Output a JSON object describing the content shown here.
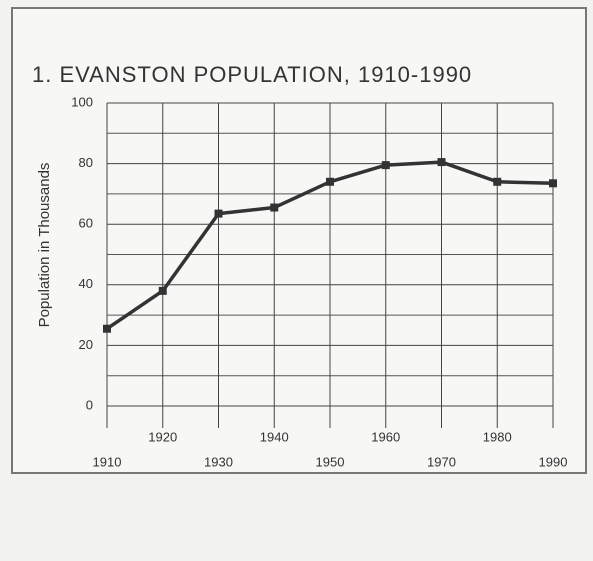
{
  "chart_data": {
    "type": "line",
    "title": "1.  EVANSTON POPULATION, 1910-1990",
    "y_label": "Population in Thousands",
    "x": [
      1910,
      1920,
      1930,
      1940,
      1950,
      1960,
      1970,
      1980,
      1990
    ],
    "series": [
      {
        "name": "Population",
        "color": "#333333",
        "values": [
          25.5,
          38,
          63.5,
          65.5,
          74,
          79.5,
          80.5,
          74,
          73.5
        ]
      }
    ],
    "xlim": [
      1910,
      1990
    ],
    "xticks": [
      1910,
      1920,
      1930,
      1940,
      1950,
      1960,
      1970,
      1980,
      1990
    ],
    "ylim": [
      0,
      100
    ],
    "yticks": [
      0,
      20,
      40,
      60,
      80,
      100
    ],
    "minor_yticks": [
      10,
      30,
      50,
      70,
      90
    ],
    "grid": true
  }
}
